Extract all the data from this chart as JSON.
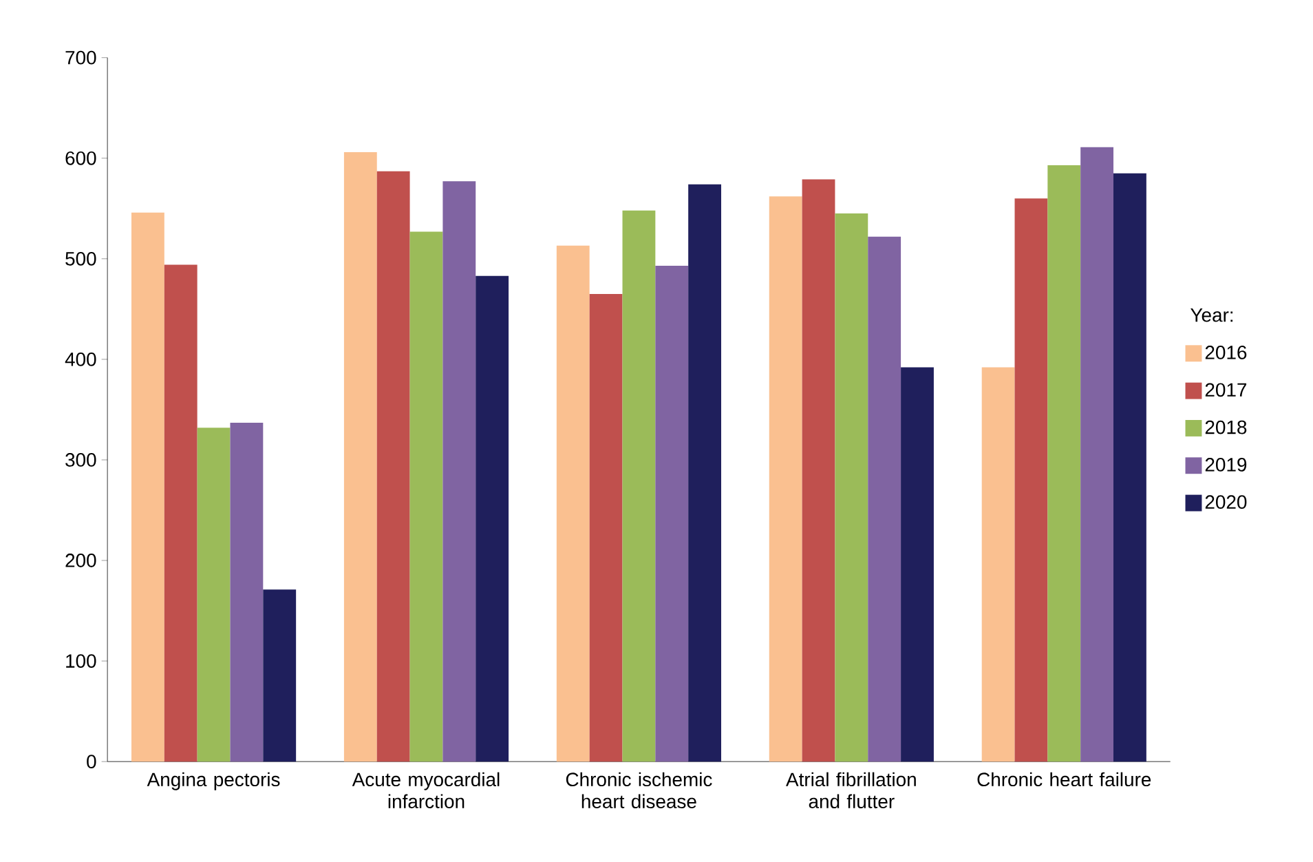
{
  "chart_data": {
    "type": "bar",
    "legend_title": "Year:",
    "legend": "right",
    "grid": false,
    "categories": [
      "Angina pectoris",
      "Acute myocardial infarction",
      "Chronic ischemic heart disease",
      "Atrial fibrillation and flutter",
      "Chronic heart failure"
    ],
    "ylim": [
      0,
      700
    ],
    "yticks": [
      0,
      100,
      200,
      300,
      400,
      500,
      600,
      700
    ],
    "series": [
      {
        "name": "2016",
        "color": "#fac090",
        "values": [
          546,
          606,
          513,
          562,
          392
        ]
      },
      {
        "name": "2017",
        "color": "#c0504d",
        "values": [
          494,
          587,
          465,
          579,
          560
        ]
      },
      {
        "name": "2018",
        "color": "#9bbb59",
        "values": [
          332,
          527,
          548,
          545,
          593
        ]
      },
      {
        "name": "2019",
        "color": "#8064a2",
        "values": [
          337,
          577,
          493,
          522,
          611
        ]
      },
      {
        "name": "2020",
        "color": "#1f1f5c",
        "values": [
          171,
          483,
          574,
          392,
          585
        ]
      }
    ]
  }
}
